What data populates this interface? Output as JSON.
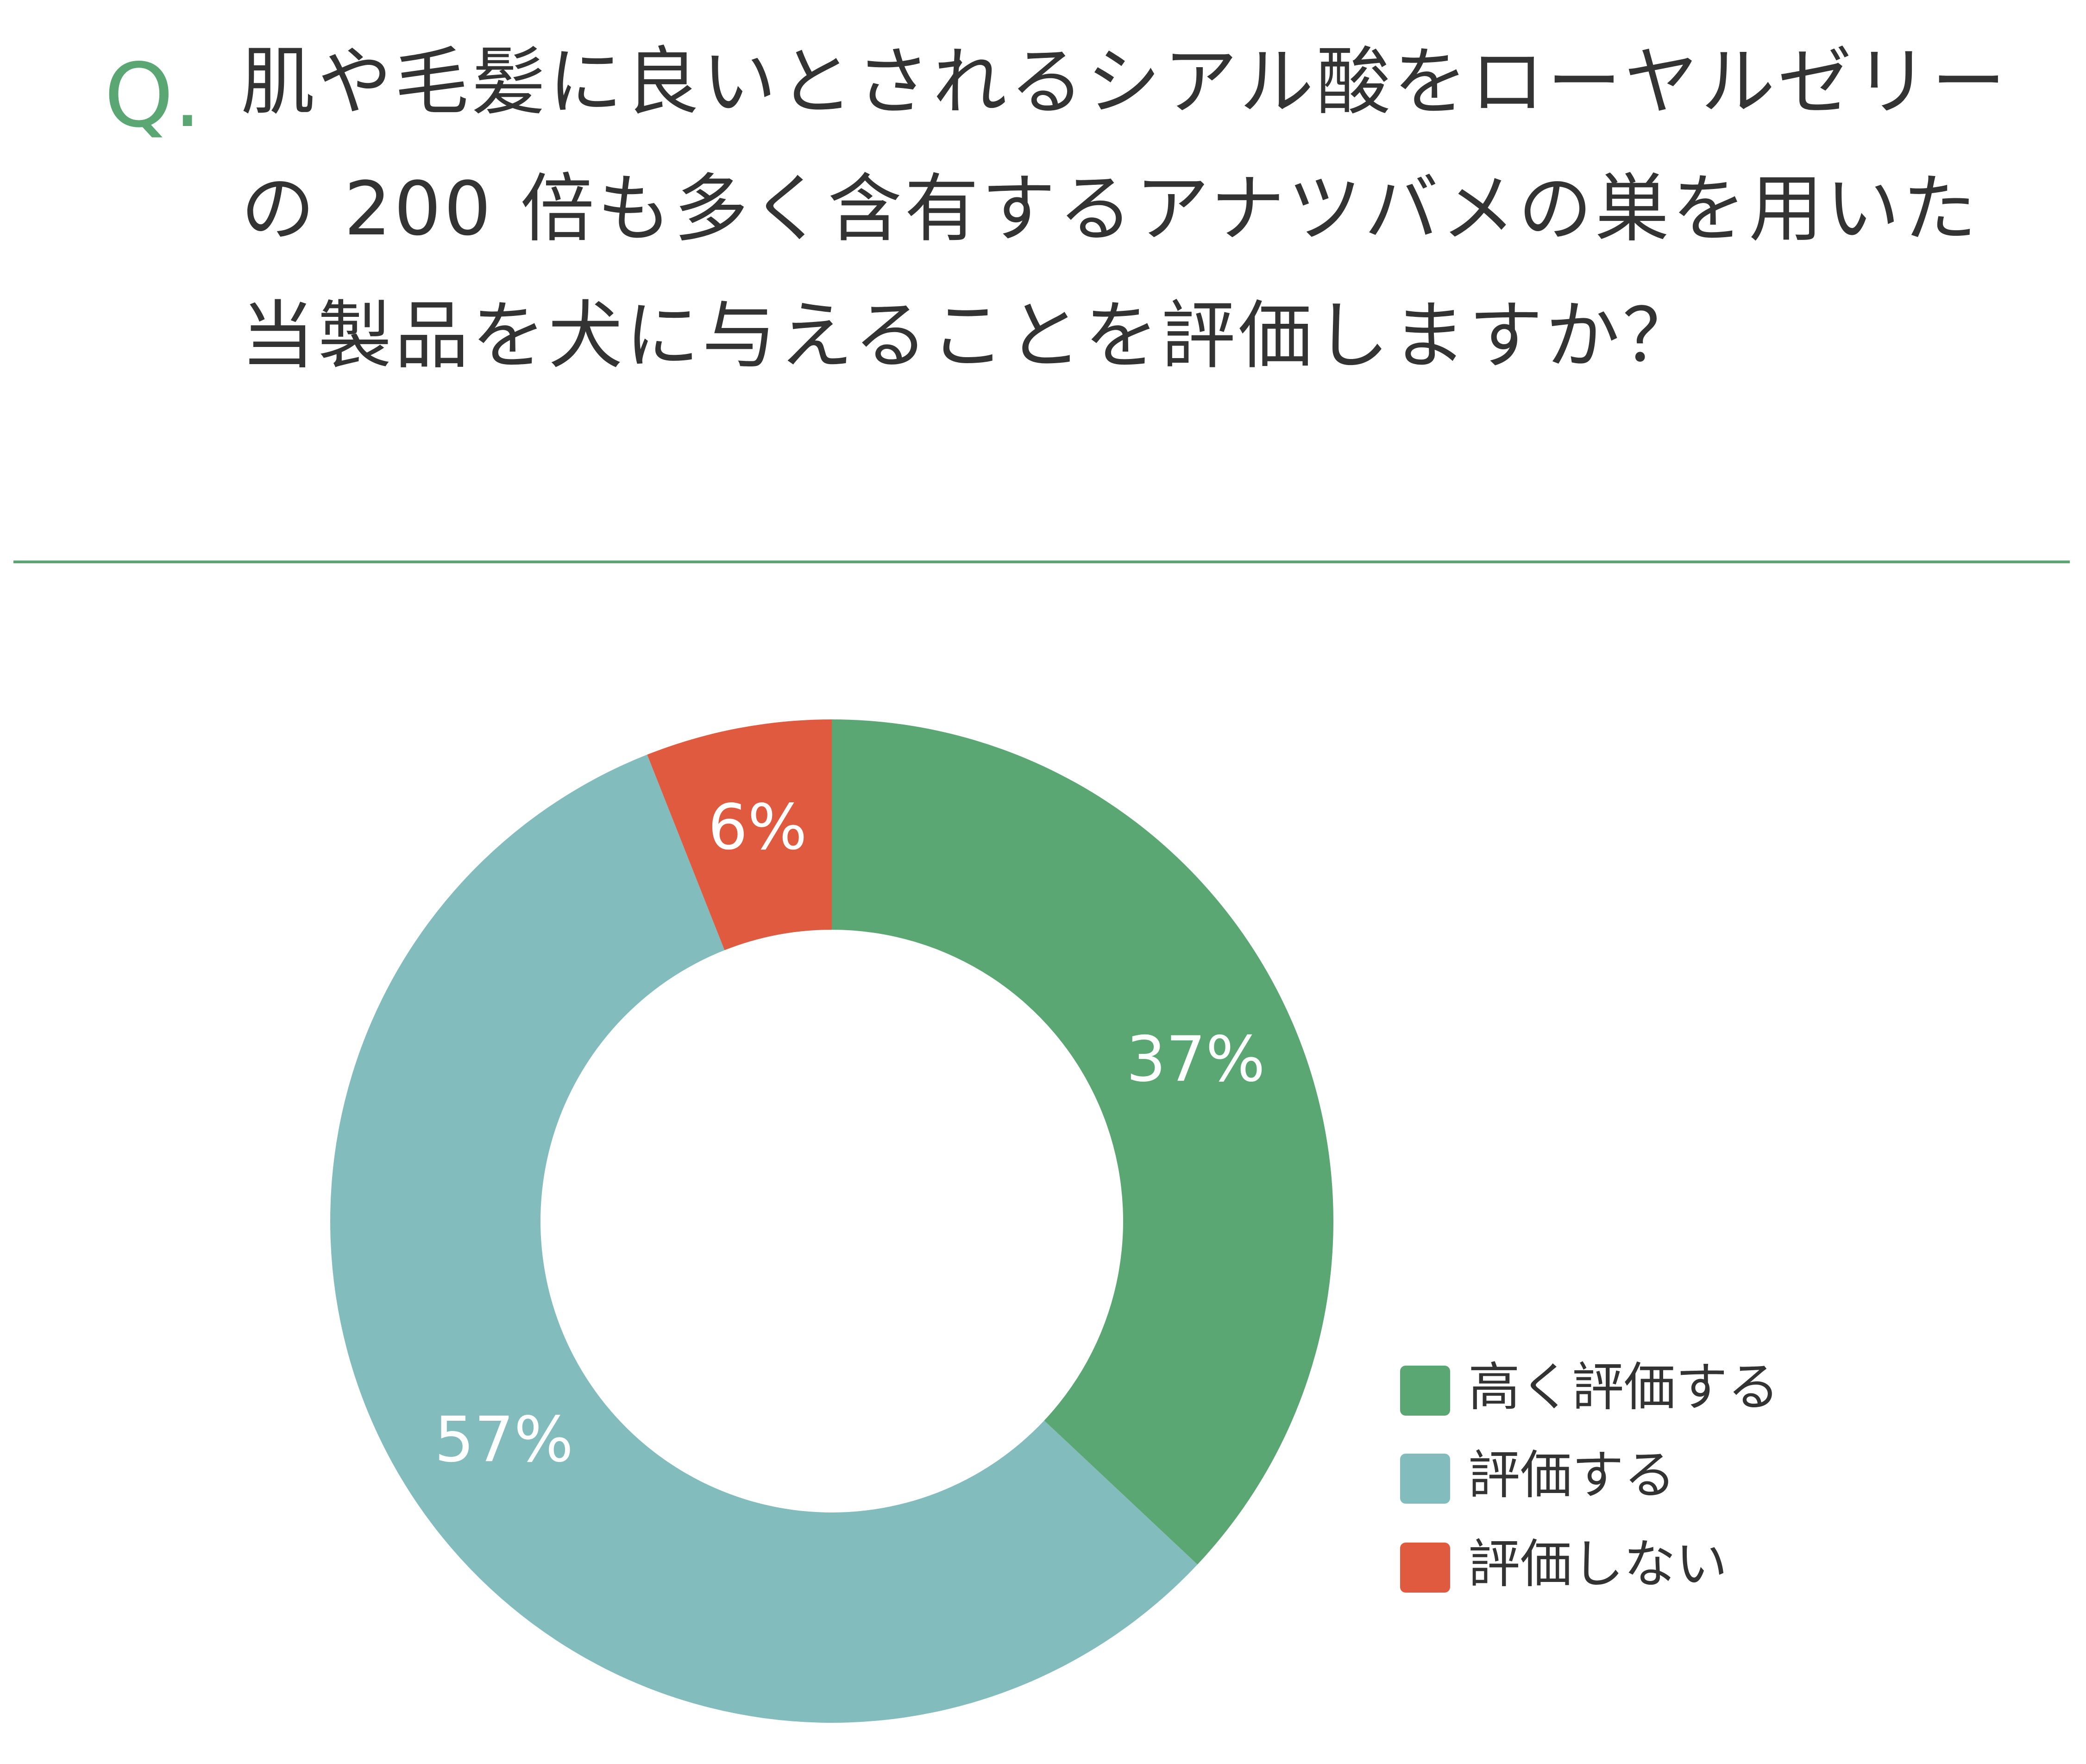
{
  "chart_data": {
    "type": "donut",
    "question_mark": "Q.",
    "title": "肌や毛髪に良いとされるシアル酸をローヤルゼリーの 200 倍も多く含有するアナツバメの巣を用いた当製品を犬に与えることを評価しますか？",
    "categories": [
      "高く評価する",
      "評価する",
      "評価しない"
    ],
    "values": [
      37,
      57,
      6
    ],
    "value_labels": [
      "37%",
      "57%",
      "6%"
    ],
    "colors": [
      "#5aa773",
      "#82bcbc",
      "#e05a40"
    ],
    "legend": "lower right"
  }
}
